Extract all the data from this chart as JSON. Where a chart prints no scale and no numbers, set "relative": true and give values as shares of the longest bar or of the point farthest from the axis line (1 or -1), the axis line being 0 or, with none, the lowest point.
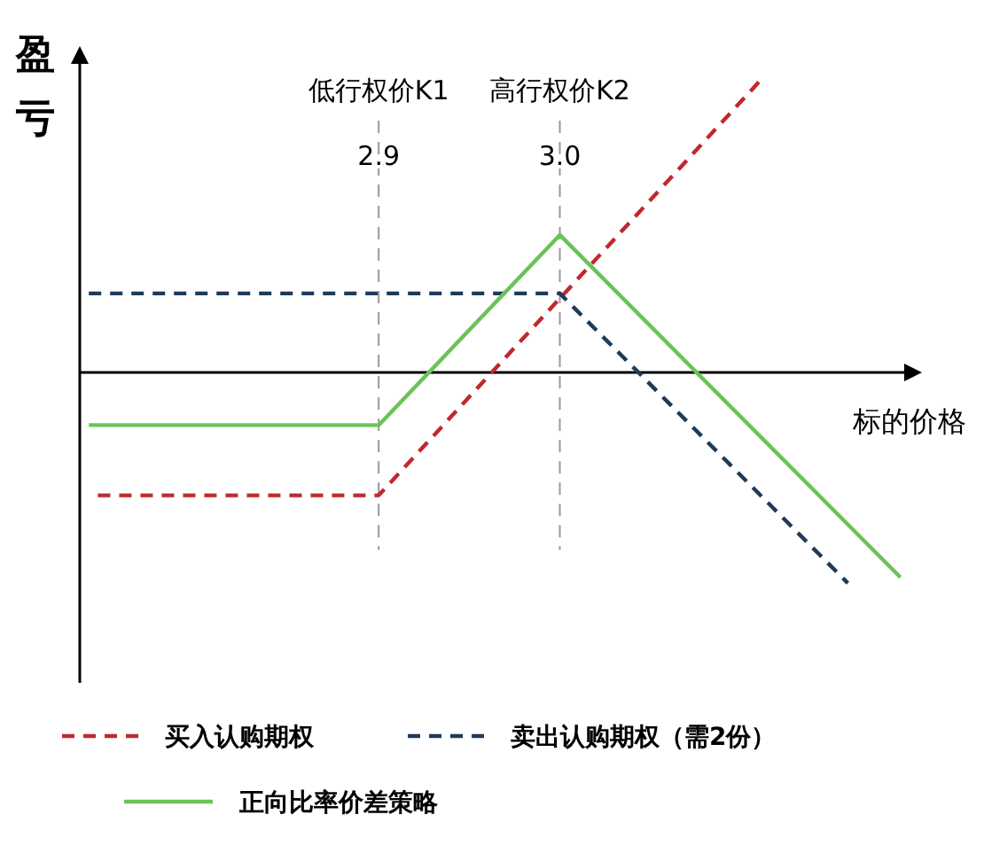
{
  "chart_data": {
    "type": "line",
    "relative": true,
    "xlabel": "标的价格",
    "ylabel": "盈亏",
    "xlim": [
      2.735,
      3.195
    ],
    "xticks": [
      2.9,
      {
        "value": 3.0,
        "label": "3.0"
      }
    ],
    "tick_labels": "x",
    "legend": "bottom",
    "marker": "none",
    "series": [
      {
        "name": "买入认购期权",
        "color": "#c0282d",
        "line_style": "dashed",
        "x": [
          2.745,
          2.9,
          3.111
        ],
        "values": [
          -0.42,
          -0.42,
          1
        ]
      },
      {
        "name": "卖出认购期权（需2份）",
        "color": "#1f3a5a",
        "line_style": "dashed",
        "x": [
          2.74,
          3.0,
          3.159
        ],
        "values": [
          0.27,
          0.27,
          -0.72
        ]
      },
      {
        "name": "正向比率价差策略",
        "color": "#6cc25a",
        "line_style": "solid",
        "x": [
          2.74,
          2.9,
          3.0,
          3.188
        ],
        "values": [
          -0.18,
          -0.18,
          0.47,
          -0.7
        ]
      }
    ],
    "ref_lines": [
      {
        "axis": "x",
        "value": 2.9,
        "label": "低行权价K1",
        "color": "#999999",
        "line_style": "dashed"
      },
      {
        "axis": "x",
        "value": 3.0,
        "label": "高行权价K2",
        "color": "#999999",
        "line_style": "dashed"
      }
    ]
  }
}
